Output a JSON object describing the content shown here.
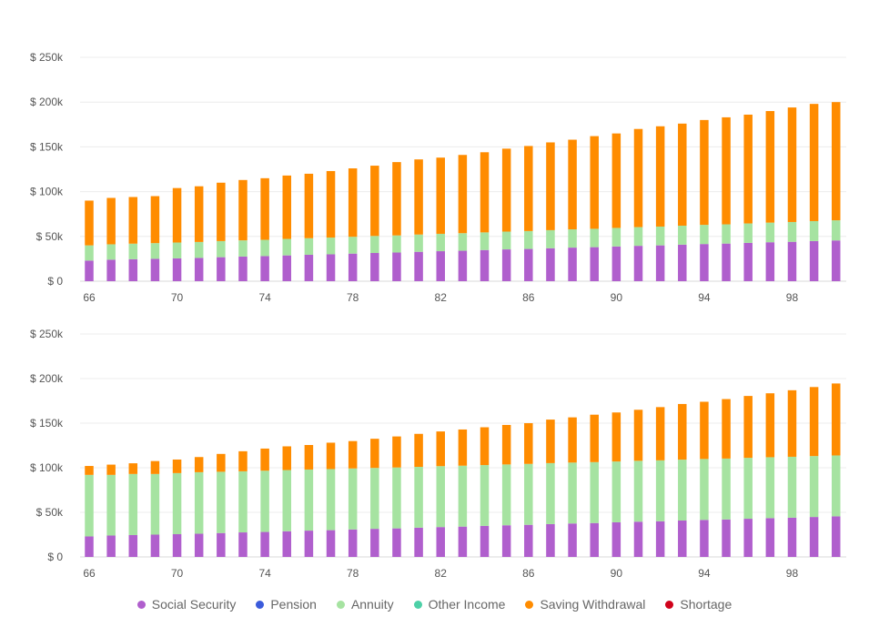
{
  "chart_data": [
    {
      "type": "bar",
      "stacked": true,
      "x": [
        66,
        67,
        68,
        69,
        70,
        71,
        72,
        73,
        74,
        75,
        76,
        77,
        78,
        79,
        80,
        81,
        82,
        83,
        84,
        85,
        86,
        87,
        88,
        89,
        90,
        91,
        92,
        93,
        94,
        95,
        96,
        97,
        98,
        99,
        100
      ],
      "x_tick_labels": [
        "66",
        "70",
        "74",
        "78",
        "82",
        "86",
        "90",
        "94",
        "98"
      ],
      "y_tick_labels": [
        "$ 0",
        "$ 50k",
        "$ 100k",
        "$ 150k",
        "$ 200k",
        "$ 250k"
      ],
      "ylim": [
        0,
        250000
      ],
      "grid": true,
      "series": [
        {
          "name": "Social Security",
          "color": "#b05fcd",
          "values": [
            23000,
            24000,
            24500,
            25000,
            25500,
            26000,
            26800,
            27500,
            28000,
            28800,
            29500,
            30000,
            30800,
            31500,
            32000,
            32800,
            33500,
            34000,
            34800,
            35500,
            36000,
            36800,
            37500,
            38000,
            38800,
            39500,
            40000,
            40800,
            41500,
            42000,
            42800,
            43500,
            44000,
            44800,
            45500
          ]
        },
        {
          "name": "Pension",
          "color": "#3b5bdb",
          "values": [
            0,
            0,
            0,
            0,
            0,
            0,
            0,
            0,
            0,
            0,
            0,
            0,
            0,
            0,
            0,
            0,
            0,
            0,
            0,
            0,
            0,
            0,
            0,
            0,
            0,
            0,
            0,
            0,
            0,
            0,
            0,
            0,
            0,
            0,
            0
          ]
        },
        {
          "name": "Annuity",
          "color": "#a6e3a1",
          "values": [
            17000,
            17200,
            17400,
            17500,
            17700,
            17800,
            18000,
            18100,
            18200,
            18400,
            18500,
            18700,
            18800,
            19000,
            19100,
            19300,
            19400,
            19600,
            19700,
            19900,
            20000,
            20200,
            20400,
            20500,
            20700,
            20900,
            21000,
            21200,
            21400,
            21500,
            21700,
            21900,
            22100,
            22300,
            22500
          ]
        },
        {
          "name": "Other Income",
          "color": "#4dd0a7",
          "values": [
            0,
            0,
            0,
            0,
            0,
            0,
            0,
            0,
            0,
            0,
            0,
            0,
            0,
            0,
            0,
            0,
            0,
            0,
            0,
            0,
            0,
            0,
            0,
            0,
            0,
            0,
            0,
            0,
            0,
            0,
            0,
            0,
            0,
            0,
            0
          ]
        },
        {
          "name": "Saving Withdrawal",
          "color": "#ff8c00",
          "values": [
            50000,
            51800,
            52100,
            52500,
            60800,
            62200,
            65200,
            67400,
            68800,
            70800,
            72000,
            74300,
            76400,
            78500,
            81900,
            83900,
            85100,
            87400,
            89500,
            92600,
            95000,
            98000,
            100100,
            103500,
            105500,
            109600,
            112000,
            114000,
            117100,
            119500,
            121500,
            124600,
            127900,
            130900,
            132000
          ]
        },
        {
          "name": "Shortage",
          "color": "#d0021b",
          "values": [
            0,
            0,
            0,
            0,
            0,
            0,
            0,
            0,
            0,
            0,
            0,
            0,
            0,
            0,
            0,
            0,
            0,
            0,
            0,
            0,
            0,
            0,
            0,
            0,
            0,
            0,
            0,
            0,
            0,
            0,
            0,
            0,
            0,
            0,
            0
          ]
        }
      ]
    },
    {
      "type": "bar",
      "stacked": true,
      "x": [
        66,
        67,
        68,
        69,
        70,
        71,
        72,
        73,
        74,
        75,
        76,
        77,
        78,
        79,
        80,
        81,
        82,
        83,
        84,
        85,
        86,
        87,
        88,
        89,
        90,
        91,
        92,
        93,
        94,
        95,
        96,
        97,
        98,
        99,
        100
      ],
      "x_tick_labels": [
        "66",
        "70",
        "74",
        "78",
        "82",
        "86",
        "90",
        "94",
        "98"
      ],
      "y_tick_labels": [
        "$ 0",
        "$ 50k",
        "$ 100k",
        "$ 150k",
        "$ 200k",
        "$ 250k"
      ],
      "ylim": [
        0,
        250000
      ],
      "grid": true,
      "series": [
        {
          "name": "Social Security",
          "color": "#b05fcd",
          "values": [
            23000,
            24000,
            24500,
            25000,
            25500,
            26000,
            26800,
            27500,
            28000,
            28800,
            29500,
            30000,
            30800,
            31500,
            32000,
            32800,
            33500,
            34000,
            34800,
            35500,
            36000,
            36800,
            37500,
            38000,
            38800,
            39500,
            40000,
            40800,
            41500,
            42000,
            42800,
            43500,
            44000,
            44800,
            45500
          ]
        },
        {
          "name": "Pension",
          "color": "#3b5bdb",
          "values": [
            0,
            0,
            0,
            0,
            0,
            0,
            0,
            0,
            0,
            0,
            0,
            0,
            0,
            0,
            0,
            0,
            0,
            0,
            0,
            0,
            0,
            0,
            0,
            0,
            0,
            0,
            0,
            0,
            0,
            0,
            0,
            0,
            0,
            0,
            0
          ]
        },
        {
          "name": "Annuity",
          "color": "#a6e3a1",
          "values": [
            69000,
            68000,
            68500,
            68000,
            68500,
            69000,
            68700,
            68500,
            68700,
            68600,
            68500,
            68500,
            68400,
            68300,
            68300,
            68200,
            68300,
            68300,
            68200,
            68200,
            68300,
            68400,
            68300,
            68300,
            68200,
            68300,
            68300,
            68300,
            68300,
            68300,
            68300,
            68300,
            68300,
            68300,
            68300
          ]
        },
        {
          "name": "Other Income",
          "color": "#4dd0a7",
          "values": [
            0,
            0,
            0,
            0,
            0,
            0,
            0,
            0,
            0,
            0,
            0,
            0,
            0,
            0,
            0,
            0,
            0,
            0,
            0,
            0,
            0,
            0,
            0,
            0,
            0,
            0,
            0,
            0,
            0,
            0,
            0,
            0,
            0,
            0,
            0
          ]
        },
        {
          "name": "Saving Withdrawal",
          "color": "#ff8c00",
          "values": [
            10000,
            11500,
            12000,
            14500,
            15200,
            17000,
            20000,
            22500,
            24800,
            26600,
            27500,
            29600,
            30700,
            32700,
            34800,
            37000,
            38900,
            40600,
            42400,
            44300,
            45700,
            48800,
            50700,
            53200,
            55000,
            57200,
            59700,
            62400,
            64200,
            66700,
            69400,
            71700,
            74600,
            77400,
            80700
          ]
        },
        {
          "name": "Shortage",
          "color": "#d0021b",
          "values": [
            0,
            0,
            0,
            0,
            0,
            0,
            0,
            0,
            0,
            0,
            0,
            0,
            0,
            0,
            0,
            0,
            0,
            0,
            0,
            0,
            0,
            0,
            0,
            0,
            0,
            0,
            0,
            0,
            0,
            0,
            0,
            0,
            0,
            0,
            0
          ]
        }
      ]
    }
  ],
  "legend": [
    {
      "label": "Social Security",
      "color": "#b05fcd"
    },
    {
      "label": "Pension",
      "color": "#3b5bdb"
    },
    {
      "label": "Annuity",
      "color": "#a6e3a1"
    },
    {
      "label": "Other Income",
      "color": "#4dd0a7"
    },
    {
      "label": "Saving Withdrawal",
      "color": "#ff8c00"
    },
    {
      "label": "Shortage",
      "color": "#d0021b"
    }
  ]
}
